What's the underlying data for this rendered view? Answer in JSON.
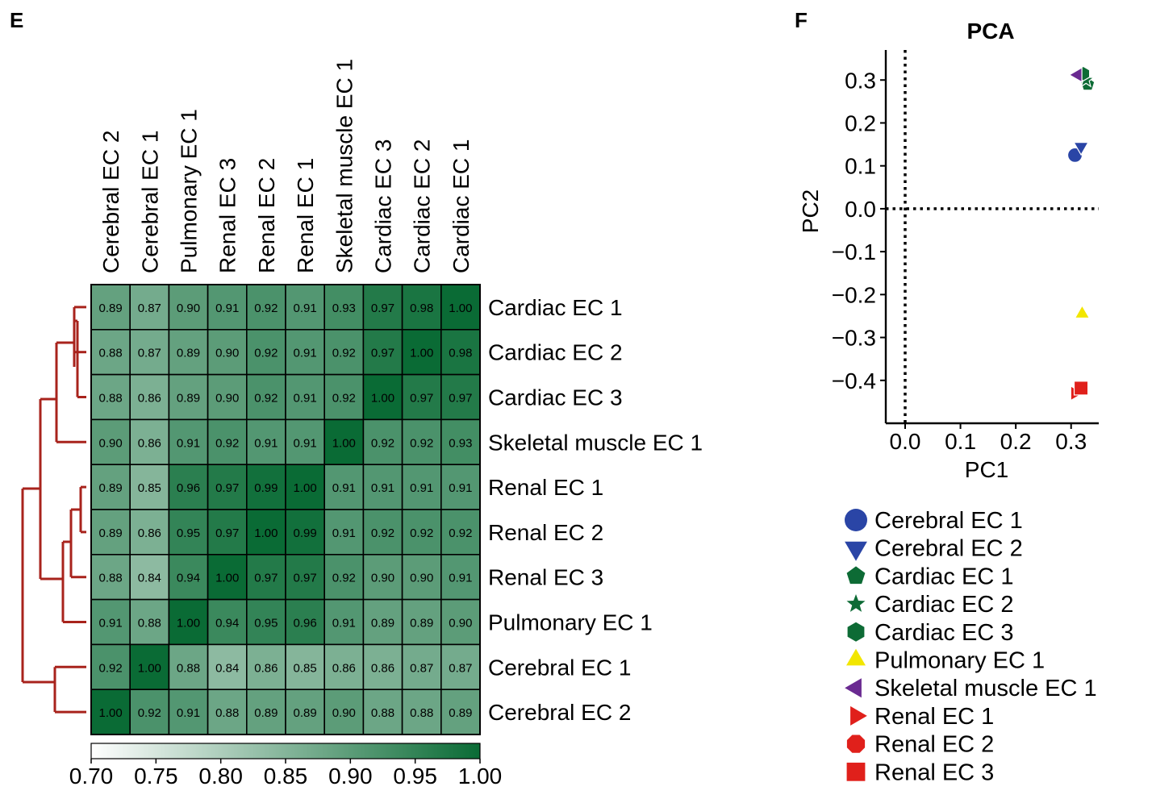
{
  "panel_e_label": "E",
  "panel_f_label": "F",
  "chart_data": [
    {
      "type": "heatmap",
      "title": "",
      "columns": [
        "Cerebral EC 2",
        "Cerebral EC 1",
        "Pulmonary EC 1",
        "Renal EC 3",
        "Renal EC 2",
        "Renal EC 1",
        "Skeletal muscle EC 1",
        "Cardiac EC 3",
        "Cardiac EC 2",
        "Cardiac EC 1"
      ],
      "rows": [
        "Cardiac EC 1",
        "Cardiac EC 2",
        "Cardiac EC 3",
        "Skeletal muscle EC 1",
        "Renal EC 1",
        "Renal EC 2",
        "Renal EC 3",
        "Pulmonary EC 1",
        "Cerebral EC 1",
        "Cerebral EC 2"
      ],
      "values": [
        [
          0.89,
          0.87,
          0.9,
          0.91,
          0.92,
          0.91,
          0.93,
          0.97,
          0.98,
          1.0
        ],
        [
          0.88,
          0.87,
          0.89,
          0.9,
          0.92,
          0.91,
          0.92,
          0.97,
          1.0,
          0.98
        ],
        [
          0.88,
          0.86,
          0.89,
          0.9,
          0.92,
          0.91,
          0.92,
          1.0,
          0.97,
          0.97
        ],
        [
          0.9,
          0.86,
          0.91,
          0.92,
          0.91,
          0.91,
          1.0,
          0.92,
          0.92,
          0.93
        ],
        [
          0.89,
          0.85,
          0.96,
          0.97,
          0.99,
          1.0,
          0.91,
          0.91,
          0.91,
          0.91
        ],
        [
          0.89,
          0.86,
          0.95,
          0.97,
          1.0,
          0.99,
          0.91,
          0.92,
          0.92,
          0.92
        ],
        [
          0.88,
          0.84,
          0.94,
          1.0,
          0.97,
          0.97,
          0.92,
          0.9,
          0.9,
          0.91
        ],
        [
          0.91,
          0.88,
          1.0,
          0.94,
          0.95,
          0.96,
          0.91,
          0.89,
          0.89,
          0.9
        ],
        [
          0.92,
          1.0,
          0.88,
          0.84,
          0.86,
          0.85,
          0.86,
          0.86,
          0.87,
          0.87
        ],
        [
          1.0,
          0.92,
          0.91,
          0.88,
          0.89,
          0.89,
          0.9,
          0.88,
          0.88,
          0.89
        ]
      ],
      "colorbar": {
        "min": 0.7,
        "max": 1.0,
        "ticks": [
          "0.70",
          "0.75",
          "0.80",
          "0.85",
          "0.90",
          "0.95",
          "1.00"
        ],
        "color_low": "#ffffff",
        "color_high": "#0a6b35"
      },
      "dendrogram_color": "#a8231c"
    },
    {
      "type": "scatter",
      "title": "PCA",
      "xlabel": "PC1",
      "ylabel": "PC2",
      "xlim": [
        -0.035,
        0.35
      ],
      "ylim": [
        -0.5,
        0.37
      ],
      "xticks": [
        {
          "value": 0.0,
          "label": "0.0"
        },
        {
          "value": 0.1,
          "label": "0.1"
        },
        {
          "value": 0.2,
          "label": "0.2"
        },
        {
          "value": 0.3,
          "label": "0.3"
        }
      ],
      "yticks": [
        {
          "value": 0.3,
          "label": "0.3"
        },
        {
          "value": 0.2,
          "label": "0.2"
        },
        {
          "value": 0.1,
          "label": "0.1"
        },
        {
          "value": 0.0,
          "label": "0.0"
        },
        {
          "value": -0.1,
          "label": "−0.1"
        },
        {
          "value": -0.2,
          "label": "−0.2"
        },
        {
          "value": -0.3,
          "label": "−0.3"
        },
        {
          "value": -0.4,
          "label": "−0.4"
        }
      ],
      "reference_lines": {
        "x": 0.0,
        "y": 0.0,
        "style": "dotted"
      },
      "legend_position": "below",
      "series": [
        {
          "name": "Cerebral EC 1",
          "marker": "circle",
          "color": "#2a45a6",
          "x": 0.307,
          "y": 0.125
        },
        {
          "name": "Cerebral EC 2",
          "marker": "triangle-down",
          "color": "#2a45a6",
          "x": 0.318,
          "y": 0.145
        },
        {
          "name": "Cardiac EC 1",
          "marker": "pentagon",
          "color": "#0d6b35",
          "x": 0.33,
          "y": 0.29
        },
        {
          "name": "Cardiac EC 2",
          "marker": "star",
          "color": "#0d6b35",
          "x": 0.327,
          "y": 0.3
        },
        {
          "name": "Cardiac EC 3",
          "marker": "hexagon",
          "color": "#0d6b35",
          "x": 0.322,
          "y": 0.315
        },
        {
          "name": "Pulmonary EC 1",
          "marker": "triangle-up",
          "color": "#f2e600",
          "x": 0.32,
          "y": -0.245
        },
        {
          "name": "Skeletal muscle EC 1",
          "marker": "triangle-left",
          "color": "#6a2a91",
          "x": 0.312,
          "y": 0.312
        },
        {
          "name": "Renal EC 1",
          "marker": "triangle-right",
          "color": "#e0201b",
          "x": 0.307,
          "y": -0.43
        },
        {
          "name": "Renal EC 2",
          "marker": "octagon",
          "color": "#e0201b",
          "x": 0.32,
          "y": -0.42
        },
        {
          "name": "Renal EC 3",
          "marker": "square",
          "color": "#e0201b",
          "x": 0.318,
          "y": -0.418
        }
      ]
    }
  ]
}
